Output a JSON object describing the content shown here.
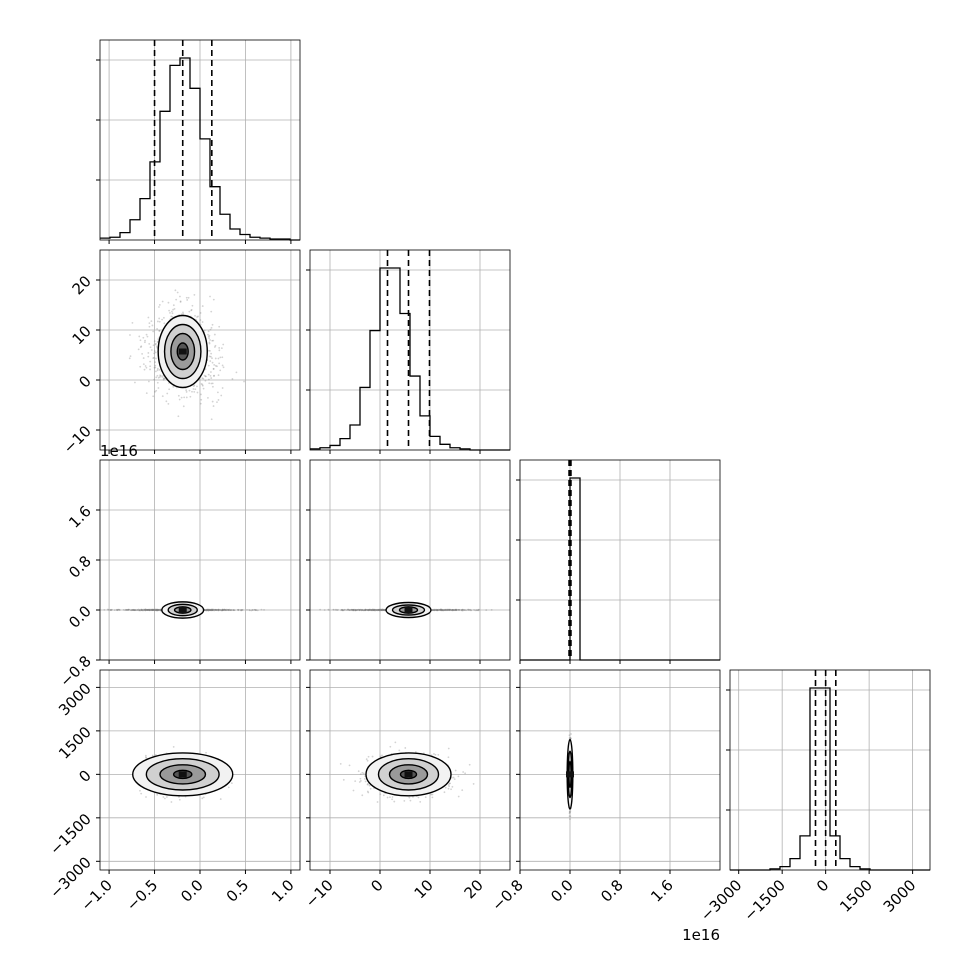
{
  "chart_data": {
    "type": "corner",
    "grid": true,
    "contour_color": "#000000",
    "scatter_color": "#808080",
    "offset_text_color": "#000000",
    "params": [
      {
        "range": [
          -1.1,
          1.1
        ],
        "ticks": [
          -1.0,
          -0.5,
          0.0,
          0.5,
          1.0
        ],
        "tick_labels": [
          "−1.0",
          "−0.5",
          "0.0",
          "0.5",
          "1.0"
        ],
        "quantiles": [
          -0.5,
          -0.19,
          0.13
        ],
        "offset_text": ""
      },
      {
        "range": [
          -14,
          26
        ],
        "ticks": [
          -10,
          0,
          10,
          20
        ],
        "tick_labels": [
          "−10",
          "0",
          "10",
          "20"
        ],
        "quantiles": [
          1.5,
          5.7,
          9.9
        ],
        "offset_text": ""
      },
      {
        "range": [
          -0.8,
          2.4
        ],
        "ticks": [
          -0.8,
          0.0,
          0.8,
          1.6
        ],
        "tick_labels": [
          "−0.8",
          "0.0",
          "0.8",
          "1.6"
        ],
        "quantiles": [
          -0.015,
          0.0,
          0.015
        ],
        "offset_text": "1e16"
      },
      {
        "range": [
          -3300,
          3600
        ],
        "ticks": [
          -3000,
          -1500,
          0,
          1500,
          3000
        ],
        "tick_labels": [
          "−3000",
          "−1500",
          "0",
          "1500",
          "3000"
        ],
        "quantiles": [
          -350,
          0,
          350
        ],
        "offset_text": ""
      }
    ],
    "histograms": [
      {
        "param": 0,
        "edges_start": -1.1,
        "edges_step": 0.11,
        "counts": [
          2,
          3,
          8,
          22,
          45,
          85,
          140,
          190,
          198,
          165,
          110,
          58,
          28,
          12,
          6,
          3,
          2,
          1,
          1,
          0
        ]
      },
      {
        "param": 1,
        "edges_start": -14,
        "edges_step": 2,
        "counts": [
          1,
          2,
          4,
          10,
          22,
          55,
          105,
          160,
          160,
          120,
          65,
          30,
          12,
          5,
          2,
          1,
          0,
          0,
          0,
          0
        ]
      },
      {
        "param": 2,
        "edges_start": -0.8,
        "edges_step": 0.16,
        "counts": [
          0,
          0,
          0,
          0,
          0,
          200,
          0,
          0,
          0,
          0,
          0,
          0,
          0,
          0,
          0,
          0,
          0,
          0,
          0,
          0
        ]
      },
      {
        "param": 3,
        "edges_start": -3300,
        "edges_step": 345,
        "counts": [
          0,
          0,
          0,
          0,
          1,
          3,
          10,
          30,
          160,
          160,
          30,
          10,
          3,
          1,
          0,
          0,
          0,
          0,
          0,
          0
        ]
      }
    ],
    "joint_panels": [
      {
        "x_param": 0,
        "y_param": 1,
        "center": [
          -0.19,
          5.7
        ],
        "contour_radii": [
          [
            0.27,
            7.2
          ],
          [
            0.2,
            5.4
          ],
          [
            0.13,
            3.6
          ],
          [
            0.06,
            1.7
          ]
        ],
        "scatter_spread": [
          0.55,
          11
        ]
      },
      {
        "x_param": 0,
        "y_param": 2,
        "center": [
          -0.19,
          0.0
        ],
        "contour_radii": [
          [
            0.23,
            0.13
          ],
          [
            0.16,
            0.09
          ],
          [
            0.09,
            0.05
          ]
        ],
        "scatter_spread": [
          0.9,
          0.01
        ]
      },
      {
        "x_param": 1,
        "y_param": 2,
        "center": [
          5.7,
          0.0
        ],
        "contour_radii": [
          [
            4.5,
            0.12
          ],
          [
            3.2,
            0.08
          ],
          [
            1.8,
            0.05
          ]
        ],
        "scatter_spread": [
          16,
          0.01
        ]
      },
      {
        "x_param": 0,
        "y_param": 3,
        "center": [
          -0.19,
          0.0
        ],
        "contour_radii": [
          [
            0.55,
            740
          ],
          [
            0.4,
            540
          ],
          [
            0.25,
            330
          ],
          [
            0.1,
            140
          ]
        ],
        "scatter_spread": [
          0.55,
          900
        ]
      },
      {
        "x_param": 1,
        "y_param": 3,
        "center": [
          5.7,
          0.0
        ],
        "contour_radii": [
          [
            8.5,
            740
          ],
          [
            6,
            540
          ],
          [
            3.8,
            330
          ],
          [
            1.6,
            140
          ]
        ],
        "scatter_spread": [
          11,
          900
        ]
      },
      {
        "x_param": 2,
        "y_param": 3,
        "center": [
          0.0,
          0.0
        ],
        "contour_radii": [
          [
            0.045,
            1200
          ],
          [
            0.03,
            800
          ],
          [
            0.018,
            450
          ]
        ],
        "scatter_spread": [
          0.02,
          1400
        ]
      }
    ]
  }
}
